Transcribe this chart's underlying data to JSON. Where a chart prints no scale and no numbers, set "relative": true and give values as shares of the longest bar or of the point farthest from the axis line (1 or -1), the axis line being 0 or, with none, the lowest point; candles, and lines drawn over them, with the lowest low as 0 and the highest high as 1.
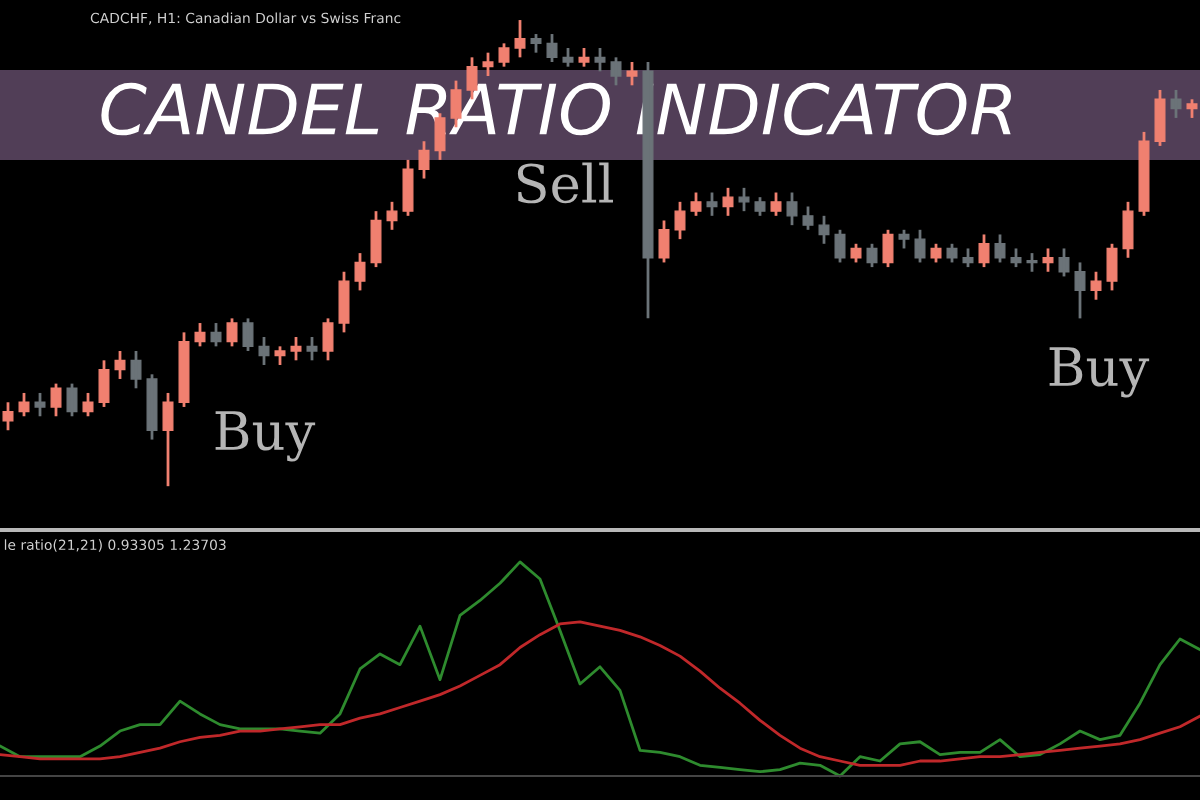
{
  "chart_data": [
    {
      "type": "candlestick",
      "title": "CANDEL RATIO INDICATOR",
      "subtitle": "CADCHF, H1: Canadian Dollar vs Swiss Franc",
      "relative": true,
      "annotations": [
        "Buy",
        "Sell",
        "Buy"
      ],
      "categories": [
        null,
        null,
        null,
        null,
        null,
        null,
        null,
        null,
        null,
        null,
        null,
        null,
        null,
        null,
        null,
        null,
        null,
        null,
        null,
        null,
        null,
        null,
        null,
        null,
        null,
        null,
        null,
        null,
        null,
        null,
        null,
        null,
        null,
        null,
        null,
        null,
        null,
        null,
        null,
        null,
        null,
        null,
        null,
        null,
        null,
        null,
        null,
        null,
        null,
        null,
        null,
        null,
        null,
        null,
        null,
        null,
        null,
        null,
        null,
        null,
        null,
        null,
        null,
        null,
        null,
        null,
        null,
        null,
        null,
        null,
        null,
        null,
        null,
        null,
        null
      ],
      "ohlc": [
        [
          0.14,
          0.18,
          0.12,
          0.16
        ],
        [
          0.16,
          0.2,
          0.15,
          0.18
        ],
        [
          0.18,
          0.2,
          0.15,
          0.17
        ],
        [
          0.17,
          0.22,
          0.15,
          0.21
        ],
        [
          0.21,
          0.22,
          0.15,
          0.16
        ],
        [
          0.16,
          0.2,
          0.15,
          0.18
        ],
        [
          0.18,
          0.27,
          0.17,
          0.25
        ],
        [
          0.25,
          0.29,
          0.23,
          0.27
        ],
        [
          0.27,
          0.29,
          0.21,
          0.23
        ],
        [
          0.23,
          0.24,
          0.1,
          0.12
        ],
        [
          0.12,
          0.2,
          0,
          0.18
        ],
        [
          0.18,
          0.33,
          0.17,
          0.31
        ],
        [
          0.31,
          0.35,
          0.3,
          0.33
        ],
        [
          0.33,
          0.35,
          0.3,
          0.31
        ],
        [
          0.31,
          0.36,
          0.3,
          0.35
        ],
        [
          0.35,
          0.36,
          0.29,
          0.3
        ],
        [
          0.3,
          0.32,
          0.26,
          0.28
        ],
        [
          0.28,
          0.3,
          0.26,
          0.29
        ],
        [
          0.29,
          0.32,
          0.27,
          0.3
        ],
        [
          0.3,
          0.32,
          0.27,
          0.29
        ],
        [
          0.29,
          0.36,
          0.27,
          0.35
        ],
        [
          0.35,
          0.46,
          0.33,
          0.44
        ],
        [
          0.44,
          0.5,
          0.42,
          0.48
        ],
        [
          0.48,
          0.59,
          0.47,
          0.57
        ],
        [
          0.57,
          0.61,
          0.55,
          0.59
        ],
        [
          0.59,
          0.7,
          0.58,
          0.68
        ],
        [
          0.68,
          0.74,
          0.66,
          0.72
        ],
        [
          0.72,
          0.8,
          0.7,
          0.79
        ],
        [
          0.79,
          0.87,
          0.77,
          0.85
        ],
        [
          0.85,
          0.92,
          0.83,
          0.9
        ],
        [
          0.9,
          0.93,
          0.88,
          0.91
        ],
        [
          0.91,
          0.95,
          0.9,
          0.94
        ],
        [
          0.94,
          1,
          0.92,
          0.96
        ],
        [
          0.96,
          0.97,
          0.93,
          0.95
        ],
        [
          0.95,
          0.97,
          0.91,
          0.92
        ],
        [
          0.92,
          0.94,
          0.9,
          0.91
        ],
        [
          0.91,
          0.94,
          0.9,
          0.92
        ],
        [
          0.92,
          0.94,
          0.89,
          0.91
        ],
        [
          0.91,
          0.92,
          0.86,
          0.88
        ],
        [
          0.88,
          0.91,
          0.86,
          0.89
        ],
        [
          0.89,
          0.91,
          0.36,
          0.49
        ],
        [
          0.49,
          0.57,
          0.48,
          0.55
        ],
        [
          0.55,
          0.61,
          0.53,
          0.59
        ],
        [
          0.59,
          0.63,
          0.58,
          0.61
        ],
        [
          0.61,
          0.63,
          0.58,
          0.6
        ],
        [
          0.6,
          0.64,
          0.58,
          0.62
        ],
        [
          0.62,
          0.64,
          0.59,
          0.61
        ],
        [
          0.61,
          0.62,
          0.58,
          0.59
        ],
        [
          0.59,
          0.63,
          0.58,
          0.61
        ],
        [
          0.61,
          0.63,
          0.56,
          0.58
        ],
        [
          0.58,
          0.6,
          0.55,
          0.56
        ],
        [
          0.56,
          0.58,
          0.52,
          0.54
        ],
        [
          0.54,
          0.55,
          0.48,
          0.49
        ],
        [
          0.49,
          0.52,
          0.48,
          0.51
        ],
        [
          0.51,
          0.52,
          0.47,
          0.48
        ],
        [
          0.48,
          0.55,
          0.47,
          0.54
        ],
        [
          0.54,
          0.55,
          0.51,
          0.53
        ],
        [
          0.53,
          0.55,
          0.48,
          0.49
        ],
        [
          0.49,
          0.52,
          0.48,
          0.51
        ],
        [
          0.51,
          0.52,
          0.48,
          0.49
        ],
        [
          0.49,
          0.51,
          0.47,
          0.48
        ],
        [
          0.48,
          0.54,
          0.47,
          0.52
        ],
        [
          0.52,
          0.54,
          0.48,
          0.49
        ],
        [
          0.49,
          0.51,
          0.47,
          0.48
        ],
        [
          0.48,
          0.5,
          0.46,
          0.48
        ],
        [
          0.48,
          0.51,
          0.46,
          0.49
        ],
        [
          0.49,
          0.51,
          0.45,
          0.46
        ],
        [
          0.46,
          0.48,
          0.36,
          0.42
        ],
        [
          0.42,
          0.46,
          0.4,
          0.44
        ],
        [
          0.44,
          0.52,
          0.42,
          0.51
        ],
        [
          0.51,
          0.61,
          0.49,
          0.59
        ],
        [
          0.59,
          0.76,
          0.58,
          0.74
        ],
        [
          0.74,
          0.85,
          0.73,
          0.83
        ],
        [
          0.83,
          0.85,
          0.79,
          0.81
        ],
        [
          0.81,
          0.83,
          0.79,
          0.82
        ]
      ],
      "colors": [
        "#f08070",
        "#f08070",
        "#6b7378",
        "#f08070",
        "#6b7378",
        "#f08070",
        "#f08070",
        "#f08070",
        "#6b7378",
        "#6b7378",
        "#f08070",
        "#f08070",
        "#f08070",
        "#6b7378",
        "#f08070",
        "#6b7378",
        "#6b7378",
        "#f08070",
        "#f08070",
        "#6b7378",
        "#f08070",
        "#f08070",
        "#f08070",
        "#f08070",
        "#f08070",
        "#f08070",
        "#f08070",
        "#f08070",
        "#f08070",
        "#f08070",
        "#f08070",
        "#f08070",
        "#f08070",
        "#6b7378",
        "#6b7378",
        "#6b7378",
        "#f08070",
        "#6b7378",
        "#6b7378",
        "#f08070",
        "#6b7378",
        "#f08070",
        "#f08070",
        "#f08070",
        "#6b7378",
        "#f08070",
        "#6b7378",
        "#6b7378",
        "#f08070",
        "#6b7378",
        "#6b7378",
        "#6b7378",
        "#6b7378",
        "#f08070",
        "#6b7378",
        "#f08070",
        "#6b7378",
        "#6b7378",
        "#f08070",
        "#6b7378",
        "#6b7378",
        "#f08070",
        "#6b7378",
        "#6b7378",
        "#6b7378",
        "#f08070",
        "#6b7378",
        "#6b7378",
        "#f08070",
        "#f08070",
        "#f08070",
        "#f08070",
        "#f08070",
        "#6b7378",
        "#f08070"
      ]
    },
    {
      "type": "line",
      "title": "le ratio(21,21) 0.93305 1.23703",
      "relative": true,
      "categories": [
        null,
        null,
        null,
        null,
        null,
        null,
        null,
        null,
        null,
        null,
        null,
        null,
        null,
        null,
        null,
        null,
        null,
        null,
        null,
        null,
        null,
        null,
        null,
        null,
        null,
        null,
        null,
        null,
        null,
        null,
        null,
        null,
        null,
        null,
        null,
        null,
        null,
        null,
        null,
        null,
        null,
        null,
        null,
        null,
        null,
        null,
        null,
        null,
        null,
        null,
        null,
        null,
        null,
        null,
        null,
        null,
        null,
        null,
        null,
        null,
        null
      ],
      "series": [
        {
          "color": "#2e8b2e",
          "values": [
            0.14,
            0.09,
            0.09,
            0.09,
            0.09,
            0.14,
            0.21,
            0.24,
            0.24,
            0.35,
            0.29,
            0.24,
            0.22,
            0.22,
            0.22,
            0.21,
            0.2,
            0.29,
            0.5,
            0.57,
            0.52,
            0.7,
            0.45,
            0.75,
            0.82,
            0.9,
            1,
            0.92,
            0.68,
            0.43,
            0.51,
            0.4,
            0.12,
            0.11,
            0.09,
            0.05,
            0.04,
            0.03,
            0.02,
            0.03,
            0.06,
            0.05,
            0,
            0.09,
            0.07,
            0.15,
            0.16,
            0.1,
            0.11,
            0.11,
            0.17,
            0.09,
            0.1,
            0.15,
            0.21,
            0.17,
            0.19,
            0.34,
            0.52,
            0.64,
            0.59
          ]
        },
        {
          "color": "#c0282a",
          "values": [
            0.1,
            0.09,
            0.08,
            0.08,
            0.08,
            0.08,
            0.09,
            0.11,
            0.13,
            0.16,
            0.18,
            0.19,
            0.21,
            0.21,
            0.22,
            0.23,
            0.24,
            0.24,
            0.27,
            0.29,
            0.32,
            0.35,
            0.38,
            0.42,
            0.47,
            0.52,
            0.6,
            0.66,
            0.71,
            0.72,
            0.7,
            0.68,
            0.65,
            0.61,
            0.56,
            0.49,
            0.41,
            0.34,
            0.26,
            0.19,
            0.13,
            0.09,
            0.07,
            0.05,
            0.05,
            0.05,
            0.07,
            0.07,
            0.08,
            0.09,
            0.09,
            0.1,
            0.11,
            0.12,
            0.13,
            0.14,
            0.15,
            0.17,
            0.2,
            0.23,
            0.28
          ]
        }
      ]
    }
  ]
}
